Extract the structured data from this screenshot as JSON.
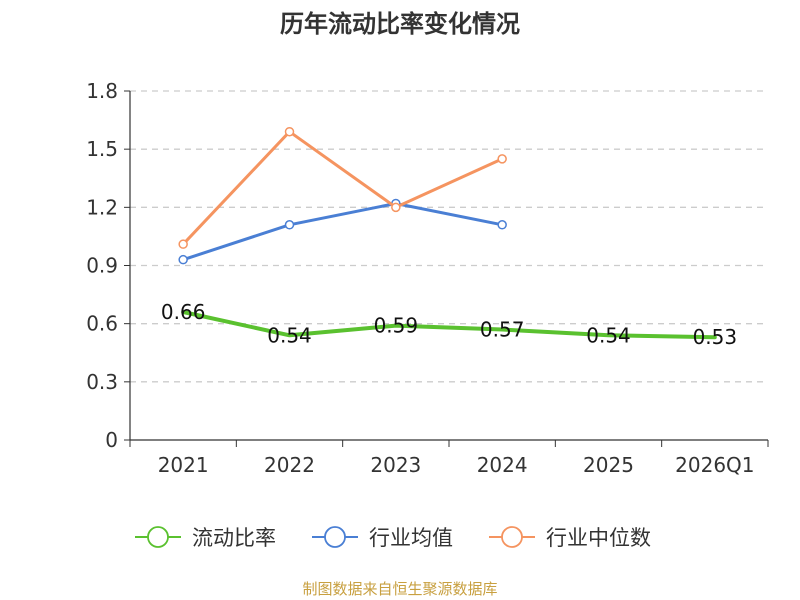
{
  "chart_data": {
    "type": "line",
    "title": "历年流动比率变化情况",
    "categories": [
      "2021",
      "2022",
      "2023",
      "2024",
      "2025",
      "2026Q1"
    ],
    "ylim": [
      0,
      1.8
    ],
    "yticks": [
      "0",
      "0.3",
      "0.6",
      "0.9",
      "1.2",
      "1.5",
      "1.8"
    ],
    "grid": true,
    "legend_position": "bottom",
    "series": [
      {
        "name": "流动比率",
        "color": "#5ac12f",
        "values": [
          0.66,
          0.54,
          0.59,
          0.57,
          0.54,
          0.53
        ],
        "labels": [
          "0.66",
          "0.54",
          "0.59",
          "0.57",
          "0.54",
          "0.53"
        ],
        "style": "thick"
      },
      {
        "name": "行业均值",
        "color": "#4a7fd4",
        "values": [
          0.93,
          1.11,
          1.22,
          1.11,
          null,
          null
        ]
      },
      {
        "name": "行业中位数",
        "color": "#f59460",
        "values": [
          1.01,
          1.59,
          1.2,
          1.45,
          null,
          null
        ]
      }
    ]
  },
  "footer": {
    "source_text": "制图数据来自恒生聚源数据库"
  }
}
